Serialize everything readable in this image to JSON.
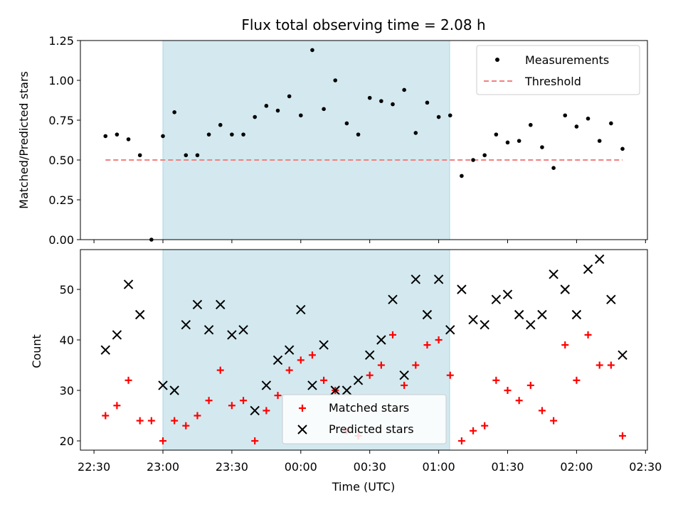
{
  "chart_data": [
    {
      "type": "scatter",
      "title": "Flux total observing time = 2.08 h",
      "xlabel": "",
      "ylabel": "Matched/Predicted stars",
      "ylim": [
        0,
        1.25
      ],
      "yticks": [
        "0.00",
        "0.25",
        "0.50",
        "0.75",
        "1.00",
        "1.25"
      ],
      "shaded_region": {
        "x_start": "23:00",
        "x_end": "01:05",
        "color": "#d3e9ef"
      },
      "legend_position": "top-right",
      "series": [
        {
          "name": "Measurements",
          "marker": "dot",
          "color": "#000000",
          "x": [
            "22:35",
            "22:40",
            "22:45",
            "22:50",
            "22:55",
            "23:00",
            "23:05",
            "23:10",
            "23:15",
            "23:20",
            "23:25",
            "23:30",
            "23:35",
            "23:40",
            "23:45",
            "23:50",
            "23:55",
            "00:00",
            "00:05",
            "00:10",
            "00:15",
            "00:20",
            "00:25",
            "00:30",
            "00:35",
            "00:40",
            "00:45",
            "00:50",
            "00:55",
            "01:00",
            "01:05",
            "01:10",
            "01:15",
            "01:20",
            "01:25",
            "01:30",
            "01:35",
            "01:40",
            "01:45",
            "01:50",
            "01:55",
            "02:00",
            "02:05",
            "02:10",
            "02:15",
            "02:20"
          ],
          "y": [
            0.65,
            0.66,
            0.63,
            0.53,
            0.0,
            0.65,
            0.8,
            0.53,
            0.53,
            0.66,
            0.72,
            0.66,
            0.66,
            0.77,
            0.84,
            0.81,
            0.9,
            0.78,
            1.19,
            0.82,
            1.0,
            0.73,
            0.66,
            0.89,
            0.87,
            0.85,
            0.94,
            0.67,
            0.86,
            0.77,
            0.78,
            0.4,
            0.5,
            0.53,
            0.66,
            0.61,
            0.62,
            0.72,
            0.58,
            0.45,
            0.78,
            0.71,
            0.76,
            0.62,
            0.73,
            0.57
          ]
        },
        {
          "name": "Threshold",
          "marker": "dashed-line",
          "color": "#f08080",
          "x": [
            "22:35",
            "02:20"
          ],
          "y": [
            0.5,
            0.5
          ]
        }
      ]
    },
    {
      "type": "scatter",
      "title": "",
      "xlabel": "Time (UTC)",
      "ylabel": "Count",
      "yticks": [
        "20",
        "30",
        "40",
        "50"
      ],
      "xticks": [
        "22:30",
        "23:00",
        "23:30",
        "00:00",
        "00:30",
        "01:00",
        "01:30",
        "02:00",
        "02:30"
      ],
      "shaded_region": {
        "x_start": "23:00",
        "x_end": "01:05",
        "color": "#d3e9ef"
      },
      "legend_position": "bottom-center",
      "series": [
        {
          "name": "Matched stars",
          "marker": "plus",
          "color": "#ff0000",
          "x": [
            "22:35",
            "22:40",
            "22:45",
            "22:50",
            "22:55",
            "23:00",
            "23:05",
            "23:10",
            "23:15",
            "23:20",
            "23:25",
            "23:30",
            "23:35",
            "23:40",
            "23:45",
            "23:50",
            "23:55",
            "00:00",
            "00:05",
            "00:10",
            "00:15",
            "00:20",
            "00:25",
            "00:30",
            "00:35",
            "00:40",
            "00:45",
            "00:50",
            "00:55",
            "01:00",
            "01:05",
            "01:10",
            "01:15",
            "01:20",
            "01:25",
            "01:30",
            "01:35",
            "01:40",
            "01:45",
            "01:50",
            "01:55",
            "02:00",
            "02:05",
            "02:10",
            "02:15",
            "02:20"
          ],
          "y": [
            25,
            27,
            32,
            24,
            24,
            20,
            24,
            23,
            25,
            28,
            34,
            27,
            28,
            20,
            26,
            29,
            34,
            36,
            37,
            32,
            30,
            22,
            21,
            33,
            35,
            41,
            31,
            35,
            39,
            40,
            33,
            20,
            22,
            23,
            32,
            30,
            28,
            31,
            26,
            24,
            39,
            32,
            41,
            35,
            35,
            21
          ]
        },
        {
          "name": "Predicted stars",
          "marker": "x",
          "color": "#000000",
          "x": [
            "22:35",
            "22:40",
            "22:45",
            "22:50",
            "23:00",
            "23:05",
            "23:10",
            "23:15",
            "23:20",
            "23:25",
            "23:30",
            "23:35",
            "23:40",
            "23:45",
            "23:50",
            "23:55",
            "00:00",
            "00:05",
            "00:10",
            "00:15",
            "00:20",
            "00:25",
            "00:30",
            "00:35",
            "00:40",
            "00:45",
            "00:50",
            "00:55",
            "01:00",
            "01:05",
            "01:10",
            "01:15",
            "01:20",
            "01:25",
            "01:30",
            "01:35",
            "01:40",
            "01:45",
            "01:50",
            "01:55",
            "02:00",
            "02:05",
            "02:10",
            "02:15",
            "02:20"
          ],
          "y": [
            38,
            41,
            51,
            45,
            31,
            30,
            43,
            47,
            42,
            47,
            41,
            42,
            26,
            31,
            36,
            38,
            46,
            31,
            39,
            30,
            30,
            32,
            37,
            40,
            48,
            33,
            52,
            45,
            52,
            42,
            50,
            44,
            43,
            48,
            49,
            45,
            43,
            45,
            53,
            50,
            45,
            54,
            56,
            48,
            37
          ]
        }
      ]
    }
  ]
}
